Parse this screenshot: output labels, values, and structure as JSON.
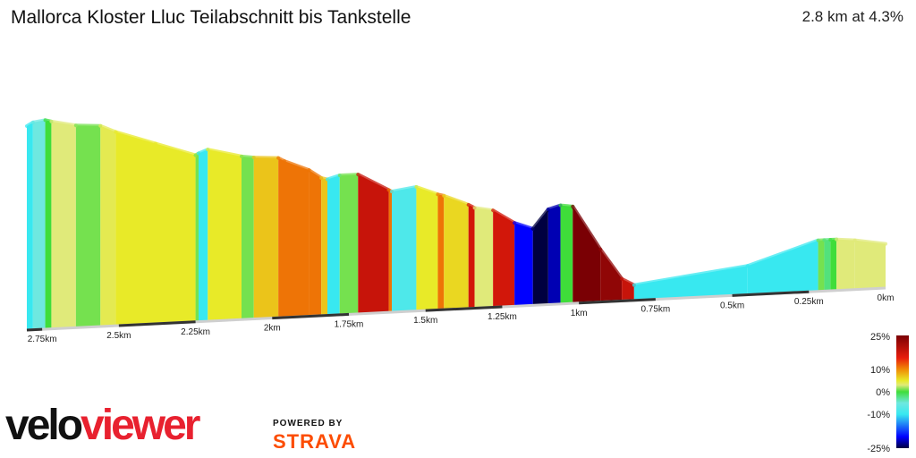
{
  "header": {
    "title": "Mallorca Kloster Lluc Teilabschnitt bis Tankstelle",
    "summary": "2.8 km at 4.3%"
  },
  "brand": {
    "velo": "velo",
    "viewer": "viewer",
    "powered_by": "POWERED BY",
    "strava": "STRAVA"
  },
  "colors": {
    "red": "#e8212f",
    "strava_orange": "#fc4c02"
  },
  "chart_data": {
    "type": "area",
    "title": "Mallorca Kloster Lluc Teilabschnitt bis Tankstelle",
    "xlabel": "",
    "ylabel": "",
    "x_direction": "reversed (distance to finish, 0km at right)",
    "x_range_km": [
      2.8,
      0
    ],
    "x_ticks": [
      {
        "label": "2.75km",
        "km": 2.75
      },
      {
        "label": "2.5km",
        "km": 2.5
      },
      {
        "label": "2.25km",
        "km": 2.25
      },
      {
        "label": "2km",
        "km": 2.0
      },
      {
        "label": "1.75km",
        "km": 1.75
      },
      {
        "label": "1.5km",
        "km": 1.5
      },
      {
        "label": "1.25km",
        "km": 1.25
      },
      {
        "label": "1km",
        "km": 1.0
      },
      {
        "label": "0.75km",
        "km": 0.75
      },
      {
        "label": "0.5km",
        "km": 0.5
      },
      {
        "label": "0.25km",
        "km": 0.25
      },
      {
        "label": "0km",
        "km": 0.0
      }
    ],
    "elevation_ylim_m": [
      0,
      130
    ],
    "profile": [
      {
        "km": 2.8,
        "elev": 120,
        "grade": -10
      },
      {
        "km": 2.78,
        "elev": 122,
        "grade": -5
      },
      {
        "km": 2.74,
        "elev": 123,
        "grade": 0
      },
      {
        "km": 2.72,
        "elev": 122,
        "grade": 3
      },
      {
        "km": 2.64,
        "elev": 119,
        "grade": 1
      },
      {
        "km": 2.56,
        "elev": 118,
        "grade": 4
      },
      {
        "km": 2.51,
        "elev": 114,
        "grade": 5
      },
      {
        "km": 2.38,
        "elev": 106,
        "grade": 5
      },
      {
        "km": 2.25,
        "elev": 98,
        "grade": 1
      },
      {
        "km": 2.24,
        "elev": 99,
        "grade": -10
      },
      {
        "km": 2.21,
        "elev": 101,
        "grade": 5
      },
      {
        "km": 2.1,
        "elev": 96,
        "grade": 1
      },
      {
        "km": 2.06,
        "elev": 95,
        "grade": 7
      },
      {
        "km": 1.98,
        "elev": 94,
        "grade": 11
      },
      {
        "km": 1.96,
        "elev": 92,
        "grade": 11
      },
      {
        "km": 1.88,
        "elev": 86,
        "grade": 11
      },
      {
        "km": 1.84,
        "elev": 81,
        "grade": 7
      },
      {
        "km": 1.82,
        "elev": 80,
        "grade": -10
      },
      {
        "km": 1.78,
        "elev": 82,
        "grade": 1
      },
      {
        "km": 1.72,
        "elev": 82,
        "grade": 18
      },
      {
        "km": 1.62,
        "elev": 72,
        "grade": 11
      },
      {
        "km": 1.61,
        "elev": 71,
        "grade": -8
      },
      {
        "km": 1.53,
        "elev": 73,
        "grade": 5
      },
      {
        "km": 1.46,
        "elev": 68,
        "grade": 11
      },
      {
        "km": 1.44,
        "elev": 67,
        "grade": 6
      },
      {
        "km": 1.36,
        "elev": 61,
        "grade": 17
      },
      {
        "km": 1.34,
        "elev": 59,
        "grade": 3
      },
      {
        "km": 1.28,
        "elev": 57,
        "grade": 17
      },
      {
        "km": 1.21,
        "elev": 49,
        "grade": -20
      },
      {
        "km": 1.15,
        "elev": 45,
        "grade": -25
      },
      {
        "km": 1.1,
        "elev": 56,
        "grade": -22
      },
      {
        "km": 1.06,
        "elev": 58,
        "grade": 0
      },
      {
        "km": 1.02,
        "elev": 57,
        "grade": 25
      },
      {
        "km": 0.93,
        "elev": 31,
        "grade": 23
      },
      {
        "km": 0.86,
        "elev": 13,
        "grade": 18
      },
      {
        "km": 0.82,
        "elev": 9,
        "grade": -10
      },
      {
        "km": 0.45,
        "elev": 17,
        "grade": -10
      },
      {
        "km": 0.22,
        "elev": 30,
        "grade": 1
      },
      {
        "km": 0.2,
        "elev": 30,
        "grade": -2
      },
      {
        "km": 0.18,
        "elev": 30,
        "grade": 0
      },
      {
        "km": 0.16,
        "elev": 30,
        "grade": 3
      },
      {
        "km": 0.1,
        "elev": 29,
        "grade": 3
      },
      {
        "km": 0.0,
        "elev": 26,
        "grade": 3
      }
    ],
    "legend": {
      "type": "gradient color scale",
      "min": -25,
      "max": 25,
      "labels": [
        {
          "label": "25%",
          "value": 25
        },
        {
          "label": "10%",
          "value": 10
        },
        {
          "label": "0%",
          "value": 0
        },
        {
          "label": "-10%",
          "value": -10
        },
        {
          "label": "-25%",
          "value": -25
        }
      ],
      "stops": [
        {
          "value": -25,
          "color": "#000040"
        },
        {
          "value": -20,
          "color": "#0000ff"
        },
        {
          "value": -10,
          "color": "#38e8f0"
        },
        {
          "value": -5,
          "color": "#6ee8e0"
        },
        {
          "value": 0,
          "color": "#3fdd3a"
        },
        {
          "value": 3,
          "color": "#e0ea7a"
        },
        {
          "value": 5,
          "color": "#e8ea28"
        },
        {
          "value": 10,
          "color": "#f08a05"
        },
        {
          "value": 15,
          "color": "#e81d0c"
        },
        {
          "value": 25,
          "color": "#7a0004"
        }
      ],
      "placement": "bottom-right"
    }
  }
}
